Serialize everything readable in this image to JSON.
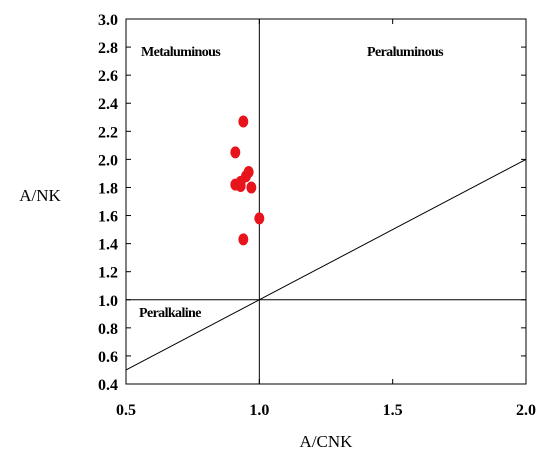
{
  "chart_data": {
    "type": "scatter",
    "xlabel": "A/CNK",
    "ylabel": "A/NK",
    "xlim": [
      0.5,
      2.0
    ],
    "ylim": [
      0.4,
      3.0
    ],
    "x_ticks": [
      "0.5",
      "1.0",
      "1.5",
      "2.0"
    ],
    "y_ticks": [
      "0.4",
      "0.6",
      "0.8",
      "1.0",
      "1.2",
      "1.4",
      "1.6",
      "1.8",
      "2.0",
      "2.2",
      "2.4",
      "2.6",
      "2.8",
      "3.0"
    ],
    "x_tick_values": [
      0.5,
      1.0,
      1.5,
      2.0
    ],
    "y_tick_values": [
      0.4,
      0.6,
      0.8,
      1.0,
      1.2,
      1.4,
      1.6,
      1.8,
      2.0,
      2.2,
      2.4,
      2.6,
      2.8,
      3.0
    ],
    "regions": {
      "metaluminous": "Metaluminous",
      "peraluminous": "Peraluminous",
      "peralkaline": "Peralkaline"
    },
    "boundary_lines": [
      {
        "name": "vertical-boundary",
        "x": [
          1.0,
          1.0
        ],
        "y": [
          0.4,
          3.0
        ]
      },
      {
        "name": "horizontal-boundary",
        "x": [
          0.5,
          2.0
        ],
        "y": [
          1.0,
          1.0
        ]
      },
      {
        "name": "diagonal-boundary",
        "x": [
          0.5,
          2.0
        ],
        "y": [
          0.5,
          2.0
        ]
      }
    ],
    "series": [
      {
        "color": "#e8141c",
        "points": [
          {
            "x": 0.94,
            "y": 2.27
          },
          {
            "x": 0.91,
            "y": 2.05
          },
          {
            "x": 0.96,
            "y": 1.91
          },
          {
            "x": 0.95,
            "y": 1.88
          },
          {
            "x": 0.93,
            "y": 1.84
          },
          {
            "x": 0.91,
            "y": 1.82
          },
          {
            "x": 0.93,
            "y": 1.81
          },
          {
            "x": 0.97,
            "y": 1.8
          },
          {
            "x": 1.0,
            "y": 1.58
          },
          {
            "x": 0.94,
            "y": 1.43
          }
        ]
      }
    ]
  }
}
